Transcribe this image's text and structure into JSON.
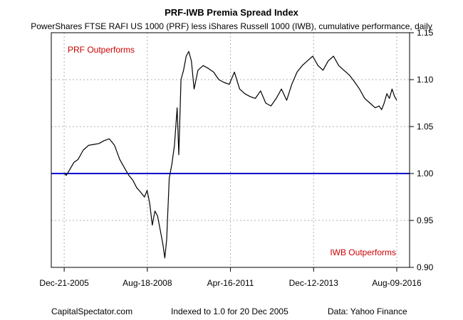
{
  "chart_data": {
    "type": "line",
    "title": "PRF-IWB Premia Spread Index",
    "subtitle": "PowerShares FTSE RAFI US 1000 (PRF) less iShares Russell 1000 (IWB), cumulative performance, daily",
    "xlabel": "",
    "ylabel": "",
    "xlim": [
      "2005-12-20",
      "2016-08-09"
    ],
    "ylim": [
      0.9,
      1.15
    ],
    "y_axis_side": "right",
    "grid": true,
    "x_ticks": [
      "2005-12-21",
      "2008-08-18",
      "2011-04-16",
      "2013-12-12",
      "2016-08-09"
    ],
    "x_tick_labels": [
      "Dec-21-2005",
      "Aug-18-2008",
      "Apr-16-2011",
      "Dec-12-2013",
      "Aug-09-2016"
    ],
    "y_ticks": [
      0.9,
      0.95,
      1.0,
      1.05,
      1.1,
      1.15
    ],
    "y_tick_labels": [
      "0.90",
      "0.95",
      "1.00",
      "1.05",
      "1.10",
      "1.15"
    ],
    "reference_line": {
      "y": 1.0,
      "color": "#0000cc"
    },
    "annotations": [
      {
        "text": "PRF Outperforms",
        "color": "#cc0000"
      },
      {
        "text": "IWB Outperforms",
        "color": "#cc0000"
      }
    ],
    "series": [
      {
        "color": "#000000",
        "x": [
          "2005-12-20",
          "2006-01-15",
          "2006-03-01",
          "2006-04-15",
          "2006-06-01",
          "2006-08-01",
          "2006-10-01",
          "2006-12-01",
          "2007-02-01",
          "2007-04-01",
          "2007-06-01",
          "2007-08-01",
          "2007-10-01",
          "2007-12-01",
          "2008-01-15",
          "2008-03-01",
          "2008-04-15",
          "2008-06-01",
          "2008-07-15",
          "2008-08-15",
          "2008-09-15",
          "2008-10-15",
          "2008-11-15",
          "2008-12-15",
          "2009-01-15",
          "2009-02-15",
          "2009-03-10",
          "2009-04-01",
          "2009-05-01",
          "2009-06-01",
          "2009-07-01",
          "2009-08-01",
          "2009-08-20",
          "2009-09-15",
          "2009-10-15",
          "2009-11-15",
          "2009-12-15",
          "2010-01-15",
          "2010-02-15",
          "2010-04-01",
          "2010-06-01",
          "2010-08-01",
          "2010-10-01",
          "2010-12-01",
          "2011-02-01",
          "2011-04-01",
          "2011-06-01",
          "2011-08-01",
          "2011-10-01",
          "2011-12-01",
          "2012-02-01",
          "2012-04-01",
          "2012-06-01",
          "2012-08-01",
          "2012-10-01",
          "2012-12-01",
          "2013-02-01",
          "2013-04-01",
          "2013-06-01",
          "2013-08-01",
          "2013-10-01",
          "2013-12-01",
          "2014-02-01",
          "2014-04-01",
          "2014-06-01",
          "2014-08-01",
          "2014-10-01",
          "2014-12-01",
          "2015-02-01",
          "2015-04-01",
          "2015-06-01",
          "2015-08-01",
          "2015-10-01",
          "2015-12-01",
          "2016-01-15",
          "2016-02-15",
          "2016-03-15",
          "2016-04-15",
          "2016-05-15",
          "2016-06-15",
          "2016-07-15",
          "2016-08-09"
        ],
        "y": [
          1.0,
          0.998,
          1.005,
          1.012,
          1.015,
          1.025,
          1.03,
          1.031,
          1.032,
          1.035,
          1.037,
          1.03,
          1.015,
          1.005,
          0.998,
          0.993,
          0.985,
          0.98,
          0.975,
          0.982,
          0.968,
          0.945,
          0.96,
          0.955,
          0.94,
          0.925,
          0.91,
          0.93,
          0.995,
          1.01,
          1.03,
          1.07,
          1.02,
          1.1,
          1.11,
          1.125,
          1.13,
          1.12,
          1.09,
          1.11,
          1.115,
          1.112,
          1.108,
          1.1,
          1.097,
          1.095,
          1.108,
          1.09,
          1.085,
          1.082,
          1.08,
          1.088,
          1.075,
          1.072,
          1.08,
          1.09,
          1.078,
          1.095,
          1.108,
          1.115,
          1.12,
          1.125,
          1.115,
          1.11,
          1.12,
          1.125,
          1.115,
          1.11,
          1.105,
          1.098,
          1.09,
          1.08,
          1.075,
          1.07,
          1.072,
          1.068,
          1.075,
          1.085,
          1.08,
          1.09,
          1.082,
          1.078
        ]
      }
    ]
  },
  "footer": {
    "left": "CapitalSpectator.com",
    "center": "Indexed to 1.0 for 20 Dec 2005",
    "right": "Data: Yahoo Finance"
  }
}
